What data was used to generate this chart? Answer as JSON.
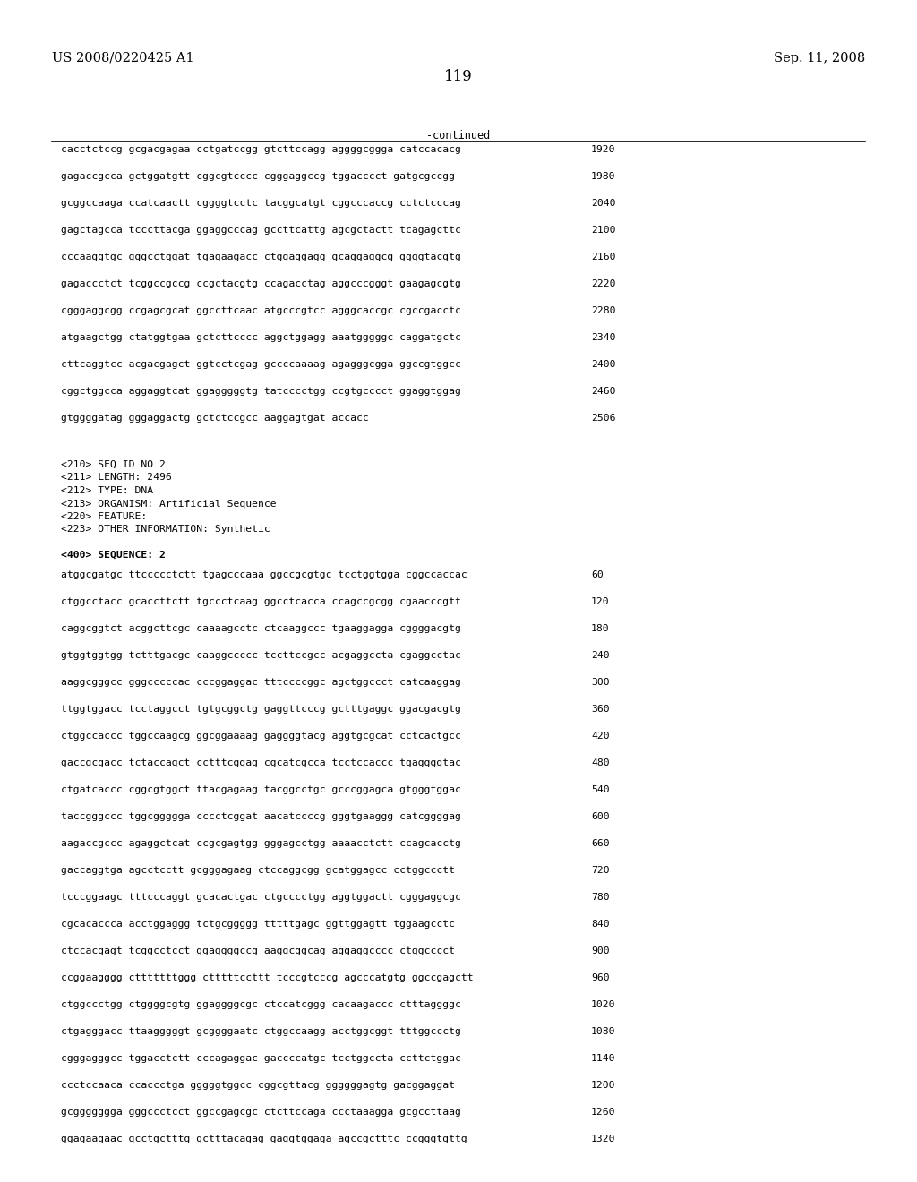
{
  "header_left": "US 2008/0220425 A1",
  "header_right": "Sep. 11, 2008",
  "page_number": "119",
  "continued_label": "-continued",
  "background_color": "#ffffff",
  "text_color": "#000000",
  "sequence_lines_top": [
    [
      "cacctctccg gcgacgagaa cctgatccgg gtcttccagg aggggcggga catccacacg",
      "1920"
    ],
    [
      "gagaccgcca gctggatgtt cggcgtcccc cgggaggccg tggacccct gatgcgccgg",
      "1980"
    ],
    [
      "gcggccaaga ccatcaactt cggggtcctc tacggcatgt cggcccaccg cctctcccag",
      "2040"
    ],
    [
      "gagctagcca tcccttacga ggaggcccag gccttcattg agcgctactt tcagagcttc",
      "2100"
    ],
    [
      "cccaaggtgc gggcctggat tgagaagacc ctggaggagg gcaggaggcg ggggtacgtg",
      "2160"
    ],
    [
      "gagaccctct tcggccgccg ccgctacgtg ccagacctag aggcccgggt gaagagcgtg",
      "2220"
    ],
    [
      "cgggaggcgg ccgagcgcat ggccttcaac atgcccgtcc agggcaccgc cgccgacctc",
      "2280"
    ],
    [
      "atgaagctgg ctatggtgaa gctcttcccc aggctggagg aaatgggggc caggatgctc",
      "2340"
    ],
    [
      "cttcaggtcc acgacgagct ggtcctcgag gccccaaaag agagggcgga ggccgtggcc",
      "2400"
    ],
    [
      "cggctggcca aggaggtcat ggagggggtg tatcccctgg ccgtgcccct ggaggtggag",
      "2460"
    ],
    [
      "gtggggatag gggaggactg gctctccgcc aaggagtgat accacc",
      "2506"
    ]
  ],
  "metadata_lines": [
    "<210> SEQ ID NO 2",
    "<211> LENGTH: 2496",
    "<212> TYPE: DNA",
    "<213> ORGANISM: Artificial Sequence",
    "<220> FEATURE:",
    "<223> OTHER INFORMATION: Synthetic"
  ],
  "sequence_label": "<400> SEQUENCE: 2",
  "sequence_lines_bottom": [
    [
      "atggcgatgc ttccccctctt tgagcccaaa ggccgcgtgc tcctggtgga cggccaccac",
      "60"
    ],
    [
      "ctggcctacc gcaccttctt tgccctcaag ggcctcacca ccagccgcgg cgaacccgtt",
      "120"
    ],
    [
      "caggcggtct acggcttcgc caaaagcctc ctcaaggccc tgaaggagga cggggacgtg",
      "180"
    ],
    [
      "gtggtggtgg tctttgacgc caaggccccc tccttccgcc acgaggccta cgaggcctac",
      "240"
    ],
    [
      "aaggcgggcc gggcccccac cccggaggac tttccccggc agctggccct catcaaggag",
      "300"
    ],
    [
      "ttggtggacc tcctaggcct tgtgcggctg gaggttcccg gctttgaggc ggacgacgtg",
      "360"
    ],
    [
      "ctggccaccc tggccaagcg ggcggaaaag gaggggtacg aggtgcgcat cctcactgcc",
      "420"
    ],
    [
      "gaccgcgacc tctaccagct cctttcggag cgcatcgcca tcctccaccc tgaggggtac",
      "480"
    ],
    [
      "ctgatcaccc cggcgtggct ttacgagaag tacggcctgc gcccggagca gtgggtggac",
      "540"
    ],
    [
      "taccgggccc tggcggggga cccctcggat aacatccccg gggtgaaggg catcggggag",
      "600"
    ],
    [
      "aagaccgccc agaggctcat ccgcgagtgg gggagcctgg aaaacctctt ccagcacctg",
      "660"
    ],
    [
      "gaccaggtga agcctcctt gcgggagaag ctccaggcgg gcatggagcc cctggccctt",
      "720"
    ],
    [
      "tcccggaagc tttcccaggt gcacactgac ctgcccctgg aggtggactt cgggaggcgc",
      "780"
    ],
    [
      "cgcacaccca acctggaggg tctgcggggg tttttgagc ggttggagtt tggaagcctc",
      "840"
    ],
    [
      "ctccacgagt tcggcctcct ggaggggccg aaggcggcag aggaggcccc ctggcccct",
      "900"
    ],
    [
      "ccggaagggg ctttttttggg ctttttccttt tcccgtcccg agcccatgtg ggccgagctt",
      "960"
    ],
    [
      "ctggccctgg ctggggcgtg ggaggggcgc ctccatcggg cacaagaccc ctttaggggc",
      "1020"
    ],
    [
      "ctgagggacc ttaagggggt gcggggaatc ctggccaagg acctggcggt tttggccctg",
      "1080"
    ],
    [
      "cgggagggcc tggacctctt cccagaggac gaccccatgc tcctggccta ccttctggac",
      "1140"
    ],
    [
      "ccctccaaca ccaccctga gggggtggcc cggcgttacg ggggggagtg gacggaggat",
      "1200"
    ],
    [
      "gcggggggga gggccctcct ggccgagcgc ctcttccaga ccctaaagga gcgccttaag",
      "1260"
    ],
    [
      "ggagaagaac gcctgctttg gctttacagag gaggtggaga agccgctttc ccgggtgttg",
      "1320"
    ]
  ]
}
